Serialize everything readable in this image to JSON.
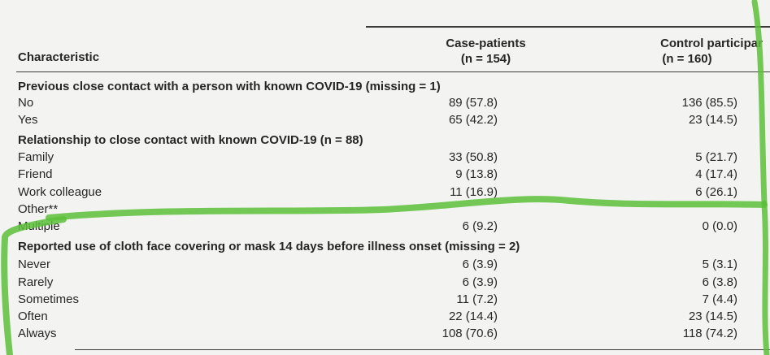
{
  "header": {
    "characteristic": "Characteristic",
    "case_label": "Case-patients",
    "case_n": "(n = 154)",
    "control_label": "Control participar",
    "control_n": "(n = 160)"
  },
  "rows": [
    {
      "label": "Previous close contact with a person with known COVID-19 (missing = 1)",
      "section": true,
      "case": "",
      "control": ""
    },
    {
      "label": "No",
      "case": "89 (57.8)",
      "control": "136 (85.5)"
    },
    {
      "label": "Yes",
      "case": "65 (42.2)",
      "control": "23 (14.5)"
    },
    {
      "label": "Relationship to close contact with known COVID-19 (n = 88)",
      "section": true,
      "case": "",
      "control": ""
    },
    {
      "label": "Family",
      "case": "33 (50.8)",
      "control": "5 (21.7)"
    },
    {
      "label": "Friend",
      "case": "9 (13.8)",
      "control": "4 (17.4)"
    },
    {
      "label": "Work colleague",
      "case": "11 (16.9)",
      "control": "6 (26.1)"
    },
    {
      "label": "Other**",
      "case": "",
      "control": ""
    },
    {
      "label": "Multiple",
      "case": "6 (9.2)",
      "control": "0 (0.0)"
    },
    {
      "label": "Reported use of cloth face covering or mask 14 days before illness onset (missing = 2)",
      "section": true,
      "case": "",
      "control": ""
    },
    {
      "label": "Never",
      "case": "6 (3.9)",
      "control": "5 (3.1)"
    },
    {
      "label": "Rarely",
      "case": "6 (3.9)",
      "control": "6 (3.8)"
    },
    {
      "label": "Sometimes",
      "case": "11 (7.2)",
      "control": "7 (4.4)"
    },
    {
      "label": "Often",
      "case": "22 (14.4)",
      "control": "23 (14.5)"
    },
    {
      "label": "Always",
      "case": "108 (70.6)",
      "control": "118 (74.2)"
    }
  ],
  "colors": {
    "highlight": "#5cbf3a",
    "text": "#262626",
    "background": "#f3f4f2"
  }
}
